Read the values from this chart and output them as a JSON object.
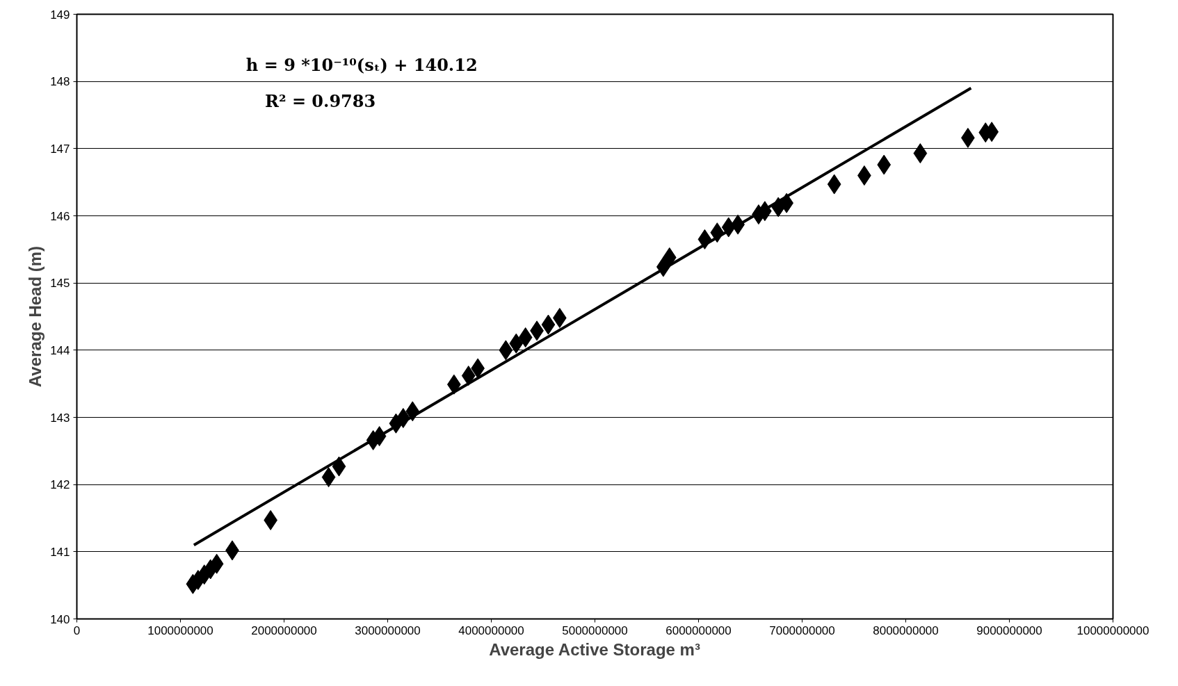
{
  "chart_data": {
    "type": "scatter",
    "xlabel": "Average Active Storage m³",
    "ylabel": "Average Head (m)",
    "annotations": [
      "h = 9 *10⁻¹⁰(sₜ) + 140.12",
      "R² = 0.9783"
    ],
    "xlim": [
      0,
      10000000000
    ],
    "xticks": [
      0,
      1000000000,
      2000000000,
      3000000000,
      4000000000,
      5000000000,
      6000000000,
      7000000000,
      8000000000,
      9000000000,
      10000000000
    ],
    "ylim": [
      140,
      149
    ],
    "yticks": [
      140,
      141,
      142,
      143,
      144,
      145,
      146,
      147,
      148,
      149
    ],
    "grid": "y",
    "series": [
      {
        "color": "#000000",
        "marker": "diamond",
        "x": [
          1120000000,
          1170000000,
          1230000000,
          1290000000,
          1350000000,
          1500000000,
          1870000000,
          2430000000,
          2530000000,
          2860000000,
          2920000000,
          3080000000,
          3150000000,
          3240000000,
          3640000000,
          3780000000,
          3870000000,
          4140000000,
          4240000000,
          4330000000,
          4440000000,
          4550000000,
          4660000000,
          5660000000,
          5720000000,
          6060000000,
          6180000000,
          6290000000,
          6380000000,
          6580000000,
          6640000000,
          6770000000,
          6850000000,
          7310000000,
          7600000000,
          7790000000,
          8140000000,
          8600000000,
          8770000000,
          8830000000
        ],
        "values": [
          140.52,
          140.58,
          140.66,
          140.74,
          140.82,
          141.02,
          141.47,
          142.11,
          142.27,
          142.66,
          142.72,
          142.91,
          142.99,
          143.09,
          143.49,
          143.62,
          143.73,
          144.0,
          144.1,
          144.19,
          144.29,
          144.38,
          144.48,
          145.24,
          145.38,
          145.65,
          145.75,
          145.83,
          145.87,
          146.02,
          146.07,
          146.13,
          146.19,
          146.47,
          146.6,
          146.76,
          146.93,
          147.16,
          147.24,
          147.25
        ]
      },
      {
        "type": "line",
        "color": "#000000",
        "line_style": "solid",
        "marker": "none",
        "x": [
          1130000000,
          8630000000
        ],
        "values": [
          141.1,
          147.9
        ]
      }
    ]
  }
}
